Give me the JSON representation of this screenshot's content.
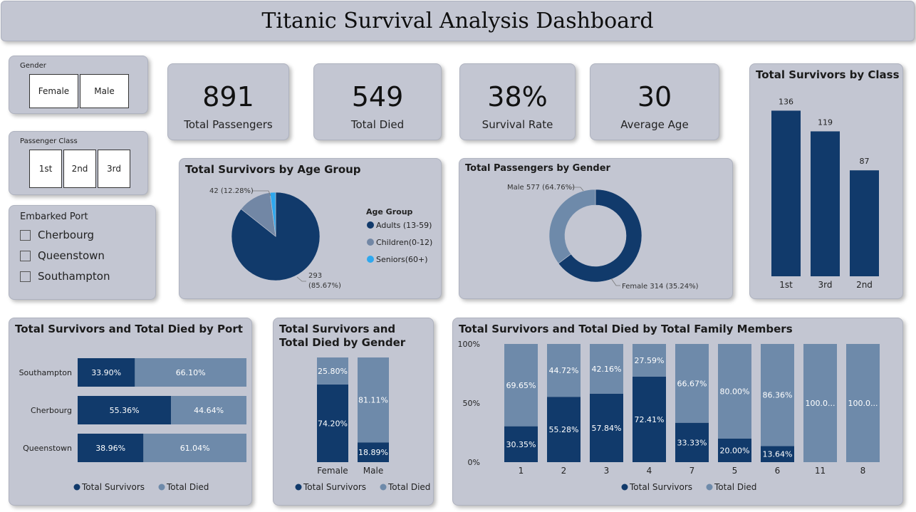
{
  "title": "Titanic Survival Analysis Dashboard",
  "slicers": {
    "gender": {
      "title": "Gender",
      "options": [
        "Female",
        "Male"
      ]
    },
    "passenger_class": {
      "title": "Passenger Class",
      "options": [
        "1st",
        "2nd",
        "3rd"
      ]
    },
    "embarked_port": {
      "title": "Embarked Port",
      "options": [
        "Cherbourg",
        "Queenstown",
        "Southampton"
      ]
    }
  },
  "kpis": [
    {
      "value": "891",
      "label": "Total Passengers"
    },
    {
      "value": "549",
      "label": "Total Died"
    },
    {
      "value": "38%",
      "label": "Survival Rate"
    },
    {
      "value": "30",
      "label": "Average Age"
    }
  ],
  "colors": {
    "dark": "#113a6b",
    "light": "#6e8aaa",
    "mid": "#7287a5",
    "sky": "#2fa8ee",
    "card": "#c3c6d2"
  },
  "chart_data": [
    {
      "id": "age_group",
      "type": "pie",
      "title": "Total Survivors by Age Group",
      "legend_title": "Age Group",
      "legend_position": "right",
      "slices": [
        {
          "label": "Adults (13-59)",
          "value": 293,
          "pct_label": "(85.67%)",
          "color": "#113a6b"
        },
        {
          "label": "Children(0-12)",
          "value": 42,
          "pct_label": "42 (12.28%)",
          "color": "#7287a5"
        },
        {
          "label": "Seniors(60+)",
          "value": 7,
          "pct_label": "",
          "color": "#2fa8ee"
        }
      ],
      "annotations": [
        "42 (12.28%)",
        "293",
        "(85.67%)"
      ]
    },
    {
      "id": "gender",
      "type": "pie",
      "subtype": "donut",
      "title": "Total Passengers by Gender",
      "slices": [
        {
          "label": "Male",
          "value": 577,
          "display": "Male 577 (64.76%)",
          "color": "#113a6b"
        },
        {
          "label": "Female",
          "value": 314,
          "display": "Female 314 (35.24%)",
          "color": "#6e8aaa"
        }
      ]
    },
    {
      "id": "class",
      "type": "bar",
      "title": "Total Survivors by Class",
      "categories": [
        "1st",
        "3rd",
        "2nd"
      ],
      "values": [
        136,
        119,
        87
      ],
      "ylim": [
        0,
        145
      ]
    },
    {
      "id": "port",
      "type": "bar",
      "subtype": "100% stacked horizontal",
      "title": "Total Survivors and Total Died by Port",
      "categories": [
        "Southampton",
        "Cherbourg",
        "Queenstown"
      ],
      "series": [
        {
          "name": "Total Survivors",
          "values": [
            33.9,
            55.36,
            38.96
          ],
          "labels": [
            "33.90%",
            "55.36%",
            "38.96%"
          ]
        },
        {
          "name": "Total Died",
          "values": [
            66.1,
            44.64,
            61.04
          ],
          "labels": [
            "66.10%",
            "44.64%",
            "61.04%"
          ]
        }
      ],
      "legend_position": "bottom"
    },
    {
      "id": "gender_stack",
      "type": "bar",
      "subtype": "100% stacked column",
      "title": "Total Survivors and Total Died by Gender",
      "categories": [
        "Female",
        "Male"
      ],
      "series": [
        {
          "name": "Total Survivors",
          "values": [
            74.2,
            18.89
          ],
          "labels": [
            "74.20%",
            "18.89%"
          ]
        },
        {
          "name": "Total Died",
          "values": [
            25.8,
            81.11
          ],
          "labels": [
            "25.80%",
            "81.11%"
          ]
        }
      ],
      "legend_position": "bottom"
    },
    {
      "id": "family",
      "type": "bar",
      "subtype": "100% stacked column",
      "title": "Total Survivors and Total Died by Total Family Members",
      "categories": [
        "1",
        "2",
        "3",
        "4",
        "7",
        "5",
        "6",
        "11",
        "8"
      ],
      "y_ticks": [
        "100%",
        "50%",
        "0%"
      ],
      "series": [
        {
          "name": "Total Survivors",
          "values": [
            30.35,
            55.28,
            57.84,
            72.41,
            33.33,
            20.0,
            13.64,
            0,
            0
          ],
          "labels": [
            "30.35%",
            "55.28%",
            "57.84%",
            "72.41%",
            "33.33%",
            "20.00%",
            "13.64%",
            "",
            ""
          ]
        },
        {
          "name": "Total Died",
          "values": [
            69.65,
            44.72,
            42.16,
            27.59,
            66.67,
            80.0,
            86.36,
            100,
            100
          ],
          "labels": [
            "69.65%",
            "44.72%",
            "42.16%",
            "27.59%",
            "66.67%",
            "80.00%",
            "86.36%",
            "100.0...",
            "100.0..."
          ]
        }
      ],
      "legend_position": "bottom"
    }
  ]
}
